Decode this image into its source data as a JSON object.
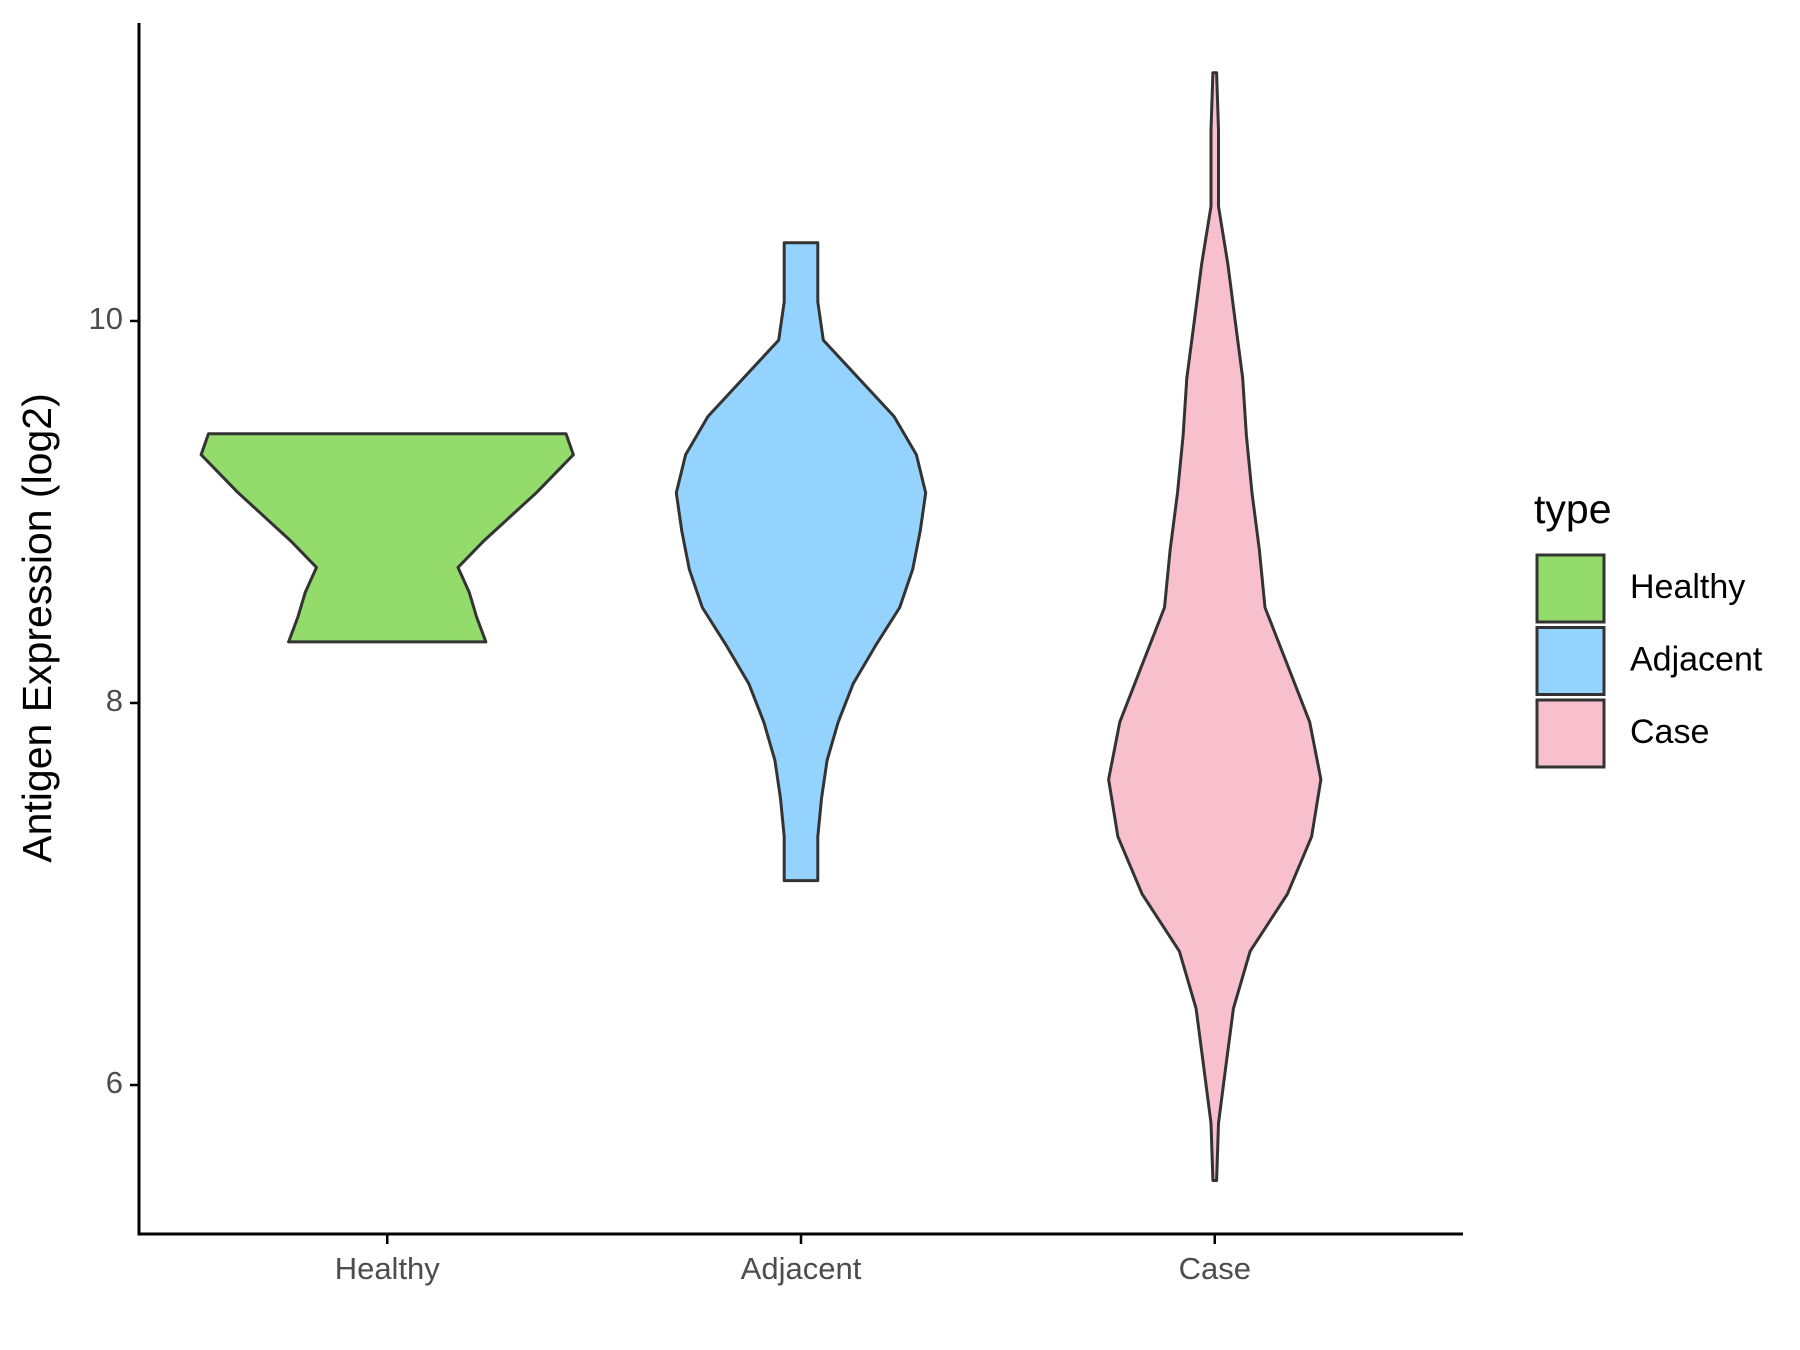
{
  "chart_data": {
    "type": "violin",
    "y_label": "Antigen Expression (log2)",
    "legend_title": "type",
    "legend_position": "right",
    "categories": [
      "Healthy",
      "Adjacent",
      "Case"
    ],
    "series": [
      {
        "name": "Healthy",
        "color": "#93db6b",
        "y": [
          8.32,
          8.45,
          8.58,
          8.71,
          8.85,
          9.1,
          9.3,
          9.41
        ],
        "width": [
          0.53,
          0.48,
          0.44,
          0.38,
          0.52,
          0.8,
          1.0,
          0.96
        ]
      },
      {
        "name": "Adjacent",
        "color": "#94d3fd",
        "y": [
          7.07,
          7.3,
          7.5,
          7.7,
          7.9,
          8.1,
          8.3,
          8.5,
          8.7,
          8.9,
          9.1,
          9.3,
          9.5,
          9.7,
          9.9,
          10.1,
          10.41
        ],
        "width": [
          0.09,
          0.09,
          0.11,
          0.14,
          0.2,
          0.28,
          0.4,
          0.53,
          0.6,
          0.64,
          0.67,
          0.62,
          0.5,
          0.31,
          0.12,
          0.09,
          0.09
        ]
      },
      {
        "name": "Case",
        "color": "#f7c0cc",
        "y": [
          5.5,
          5.8,
          6.1,
          6.4,
          6.7,
          7.0,
          7.3,
          7.6,
          7.9,
          8.2,
          8.5,
          8.8,
          9.1,
          9.4,
          9.7,
          10.0,
          10.3,
          10.6,
          11.0,
          11.3
        ],
        "width": [
          0.01,
          0.02,
          0.06,
          0.1,
          0.19,
          0.39,
          0.52,
          0.57,
          0.51,
          0.39,
          0.27,
          0.24,
          0.2,
          0.17,
          0.15,
          0.11,
          0.07,
          0.02,
          0.02,
          0.01
        ]
      }
    ],
    "ylim": [
      5.22,
      11.56
    ],
    "yticks": [
      6,
      8,
      10
    ],
    "grid": false
  }
}
